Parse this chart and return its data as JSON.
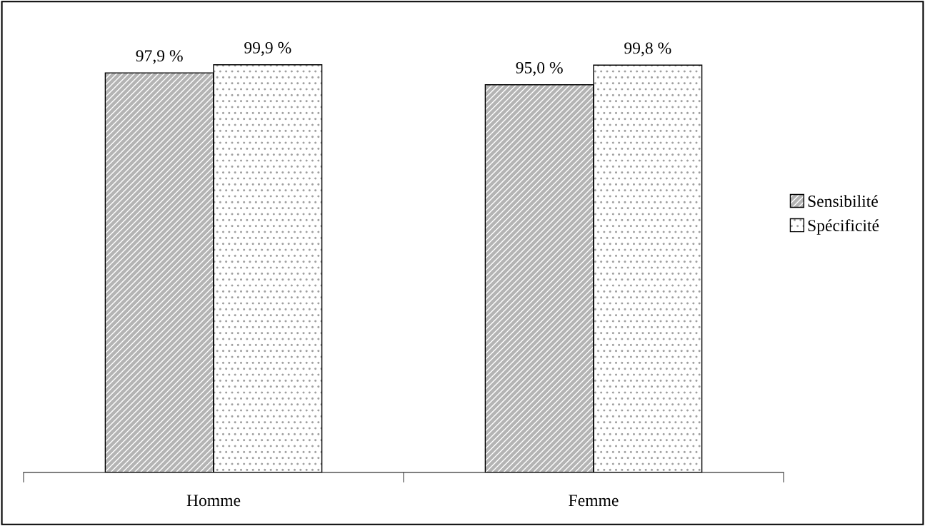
{
  "chart_data": {
    "type": "bar",
    "categories": [
      "Homme",
      "Femme"
    ],
    "series": [
      {
        "name": "Sensibilité",
        "color": "#b4b4b4",
        "values": [
          97.9,
          95.0
        ],
        "value_labels": [
          "97,9 %",
          "95,0 %"
        ]
      },
      {
        "name": "Spécificité",
        "color": "#ffffff",
        "values": [
          99.9,
          99.8
        ],
        "value_labels": [
          "99,9 %",
          "99,8 %"
        ]
      }
    ],
    "grid": false,
    "legend": "right"
  }
}
